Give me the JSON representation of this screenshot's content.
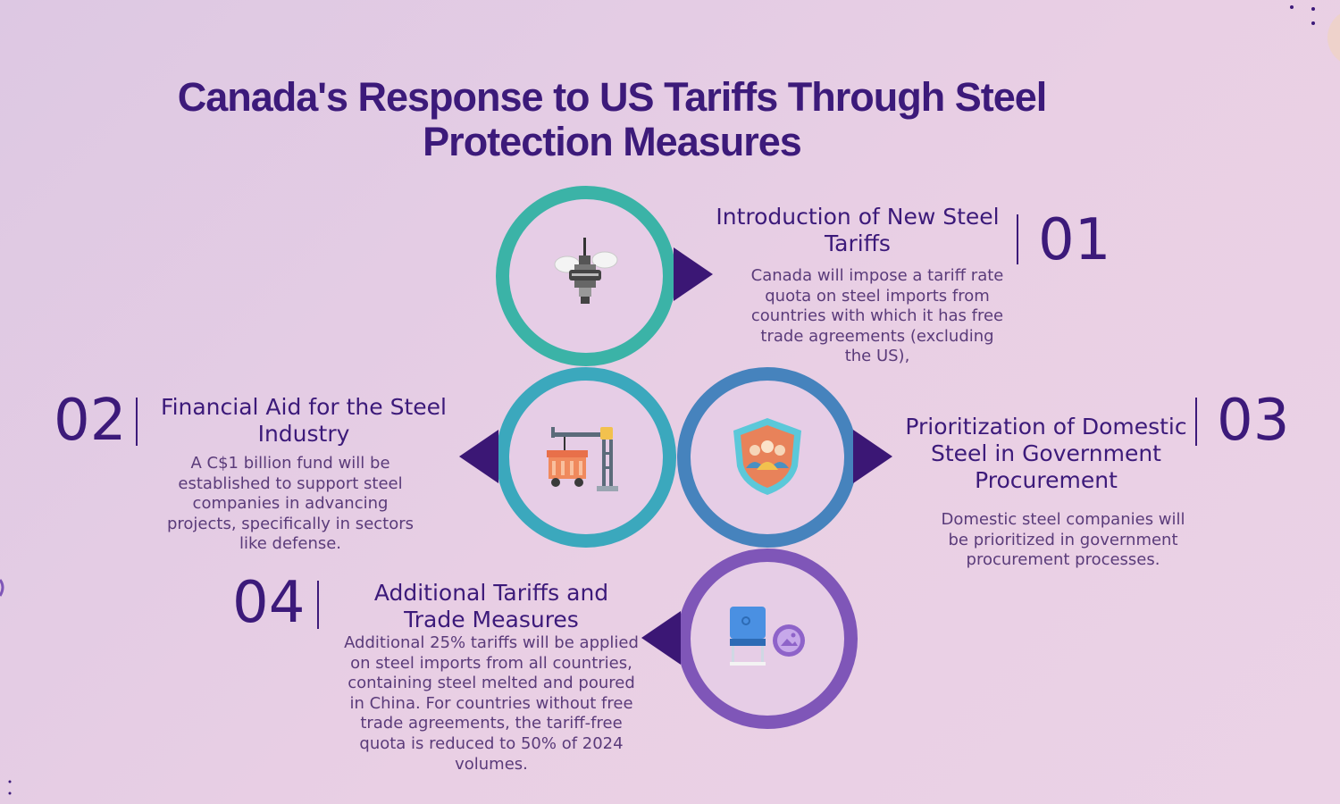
{
  "title": "Canada's Response to US Tariffs Through Steel Protection Measures",
  "steps": [
    {
      "number": "01",
      "heading": "Introduction of New Steel Tariffs",
      "description": "Canada will impose a tariff rate quota on steel imports from countries with which it has free trade agreements (excluding the US),",
      "icon": "tower-icon",
      "ring_color": "#3bb3a7"
    },
    {
      "number": "02",
      "heading": "Financial Aid for the Steel Industry",
      "description": "A C$1 billion fund will be established to support steel companies in advancing projects, specifically in sectors like defense.",
      "icon": "crane-cargo-icon",
      "ring_color": "#3ba8bd"
    },
    {
      "number": "03",
      "heading": "Prioritization of Domestic Steel in Government Procurement",
      "description": "Domestic steel companies will be prioritized in government procurement processes.",
      "icon": "shield-group-icon",
      "ring_color": "#4683bd"
    },
    {
      "number": "04",
      "heading": "Additional Tariffs and Trade Measures",
      "description": "Additional 25% tariffs will be applied on steel imports from all countries, containing steel melted and poured in China. For countries without free trade agreements, the tariff-free quota is reduced to 50% of 2024 volumes.",
      "icon": "vote-box-icon",
      "ring_color": "#7f56b8"
    }
  ],
  "colors": {
    "title": "#3c1a7a",
    "arrow": "#3b1775",
    "text": "#5a3b7a"
  }
}
